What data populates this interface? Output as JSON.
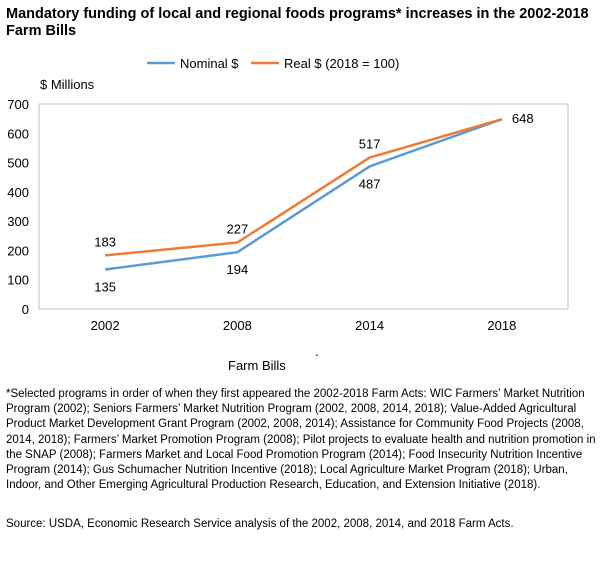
{
  "chart_data": {
    "type": "line",
    "title": "Mandatory funding of local and regional foods programs* increases in the 2002-2018 Farm Bills",
    "ylabel": "$ Millions",
    "xlabel": "Farm Bills",
    "categories": [
      "2002",
      "2008",
      "2014",
      "2018"
    ],
    "series": [
      {
        "name": "Nominal $",
        "values": [
          135,
          194,
          487,
          648
        ],
        "color": "#5b9bd5"
      },
      {
        "name": "Real $ (2018 = 100)",
        "values": [
          183,
          227,
          517,
          648
        ],
        "color": "#ed7d31"
      }
    ],
    "ylim": [
      0,
      700
    ],
    "yticks": [
      "0",
      "100",
      "200",
      "300",
      "400",
      "500",
      "600",
      "700"
    ],
    "grid": false,
    "legend_position": "top",
    "stray_mark": "."
  },
  "footnote": "*Selected programs in order of when they first appeared the 2002-2018 Farm Acts: WIC Farmers’ Market Nutrition Program (2002); Seniors Farmers’ Market Nutrition Program (2002, 2008, 2014, 2018); Value-Added Agricultural Product Market Development Grant Program (2002, 2008, 2014); Assistance for Community Food Projects (2008, 2014, 2018); Farmers’ Market Promotion Program (2008); Pilot projects to evaluate health and nutrition promotion in the SNAP (2008); Farmers Market and Local Food Promotion Program (2014); Food Insecurity Nutrition Incentive Program (2014); Gus Schumacher Nutrition Incentive (2018); Local Agriculture Market Program (2018); Urban, Indoor, and Other Emerging Agricultural Production Research, Education, and Extension Initiative (2018).",
  "source": "Source:  USDA, Economic Research Service analysis of the 2002, 2008, 2014, and 2018 Farm Acts."
}
